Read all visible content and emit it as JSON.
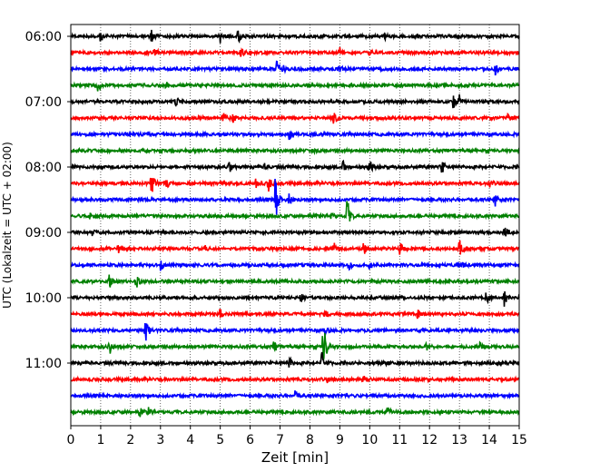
{
  "chart_data": {
    "type": "line",
    "xlabel": "Zeit  [min]",
    "ylabel": "UTC (Lokalzeit = UTC + 02:00)",
    "xlim": [
      0,
      15
    ],
    "x_ticks": [
      "0",
      "1",
      "2",
      "3",
      "4",
      "5",
      "6",
      "7",
      "8",
      "9",
      "10",
      "11",
      "12",
      "13",
      "14",
      "15"
    ],
    "y_tick_labels": [
      "06:00",
      "07:00",
      "08:00",
      "09:00",
      "10:00",
      "11:00"
    ],
    "grid": "vertical dotted at each minute",
    "trace_interval_minutes": 15,
    "trace_color_cycle": [
      "#000000",
      "#ff0000",
      "#0000ff",
      "#008000"
    ],
    "traces": [
      {
        "start": "06:00",
        "events": [
          [
            1.0,
            0.5
          ],
          [
            2.7,
            0.7
          ],
          [
            5.0,
            0.6
          ],
          [
            5.6,
            0.6
          ],
          [
            3.3,
            0.3
          ],
          [
            10.5,
            0.3
          ]
        ]
      },
      {
        "start": "06:15",
        "events": [
          [
            2.8,
            0.5
          ],
          [
            5.7,
            0.4
          ],
          [
            9.0,
            0.5
          ],
          [
            10.0,
            0.3
          ]
        ]
      },
      {
        "start": "06:30",
        "events": [
          [
            6.9,
            0.9
          ],
          [
            7.1,
            0.4
          ],
          [
            9.0,
            0.3
          ],
          [
            14.2,
            0.5
          ]
        ]
      },
      {
        "start": "06:45",
        "events": [
          [
            0.9,
            0.5
          ],
          [
            3.2,
            0.3
          ]
        ]
      },
      {
        "start": "07:00",
        "events": [
          [
            3.5,
            0.7
          ],
          [
            12.8,
            0.7
          ],
          [
            13.0,
            0.6
          ]
        ]
      },
      {
        "start": "07:15",
        "events": [
          [
            5.1,
            0.6
          ],
          [
            5.4,
            0.6
          ],
          [
            8.8,
            0.6
          ],
          [
            14.6,
            0.4
          ]
        ]
      },
      {
        "start": "07:30",
        "events": [
          [
            7.3,
            0.6
          ]
        ]
      },
      {
        "start": "07:45",
        "events": [
          [
            0.2,
            0.4
          ],
          [
            8.1,
            0.3
          ]
        ]
      },
      {
        "start": "08:00",
        "events": [
          [
            5.3,
            0.7
          ],
          [
            6.5,
            0.4
          ],
          [
            9.1,
            0.8
          ],
          [
            10.0,
            0.7
          ],
          [
            12.4,
            0.9
          ]
        ]
      },
      {
        "start": "08:15",
        "events": [
          [
            2.7,
            1.3
          ],
          [
            3.2,
            0.5
          ],
          [
            6.2,
            0.6
          ],
          [
            6.6,
            0.9
          ],
          [
            14.0,
            0.4
          ]
        ]
      },
      {
        "start": "08:30",
        "events": [
          [
            6.85,
            2.6
          ],
          [
            7.3,
            0.5
          ],
          [
            14.2,
            0.6
          ]
        ]
      },
      {
        "start": "08:45",
        "events": [
          [
            0.6,
            0.5
          ],
          [
            8.7,
            0.4
          ],
          [
            9.25,
            1.9
          ]
        ]
      },
      {
        "start": "09:00",
        "events": [
          [
            0.7,
            0.3
          ],
          [
            14.5,
            0.6
          ]
        ]
      },
      {
        "start": "09:15",
        "events": [
          [
            1.6,
            0.4
          ],
          [
            4.5,
            0.4
          ],
          [
            8.8,
            0.7
          ],
          [
            9.8,
            0.6
          ],
          [
            11.0,
            1.4
          ],
          [
            13.0,
            0.9
          ]
        ]
      },
      {
        "start": "09:30",
        "events": [
          [
            3.0,
            0.6
          ],
          [
            9.3,
            0.4
          ],
          [
            10.0,
            0.4
          ],
          [
            13.1,
            0.3
          ]
        ]
      },
      {
        "start": "09:45",
        "events": [
          [
            1.3,
            0.9
          ],
          [
            2.2,
            0.6
          ]
        ]
      },
      {
        "start": "10:00",
        "events": [
          [
            7.7,
            0.4
          ],
          [
            13.9,
            0.6
          ],
          [
            14.5,
            0.8
          ]
        ]
      },
      {
        "start": "10:15",
        "events": [
          [
            5.0,
            0.6
          ],
          [
            8.5,
            0.4
          ],
          [
            11.6,
            0.4
          ]
        ]
      },
      {
        "start": "10:30",
        "events": [
          [
            2.5,
            1.4
          ],
          [
            8.5,
            0.5
          ]
        ]
      },
      {
        "start": "10:45",
        "events": [
          [
            1.3,
            0.7
          ],
          [
            6.8,
            0.6
          ],
          [
            8.45,
            3.0
          ],
          [
            11.9,
            0.4
          ],
          [
            13.7,
            0.4
          ]
        ]
      },
      {
        "start": "11:00",
        "events": [
          [
            7.3,
            0.7
          ],
          [
            8.4,
            1.0
          ],
          [
            10.5,
            0.3
          ]
        ]
      },
      {
        "start": "11:15",
        "events": [
          [
            8.6,
            0.3
          ],
          [
            9.8,
            0.6
          ]
        ]
      },
      {
        "start": "11:30",
        "events": [
          [
            7.5,
            0.6
          ],
          [
            9.2,
            0.3
          ]
        ]
      },
      {
        "start": "11:45",
        "events": [
          [
            2.3,
            0.5
          ],
          [
            2.6,
            0.4
          ],
          [
            10.6,
            0.6
          ]
        ]
      }
    ]
  }
}
